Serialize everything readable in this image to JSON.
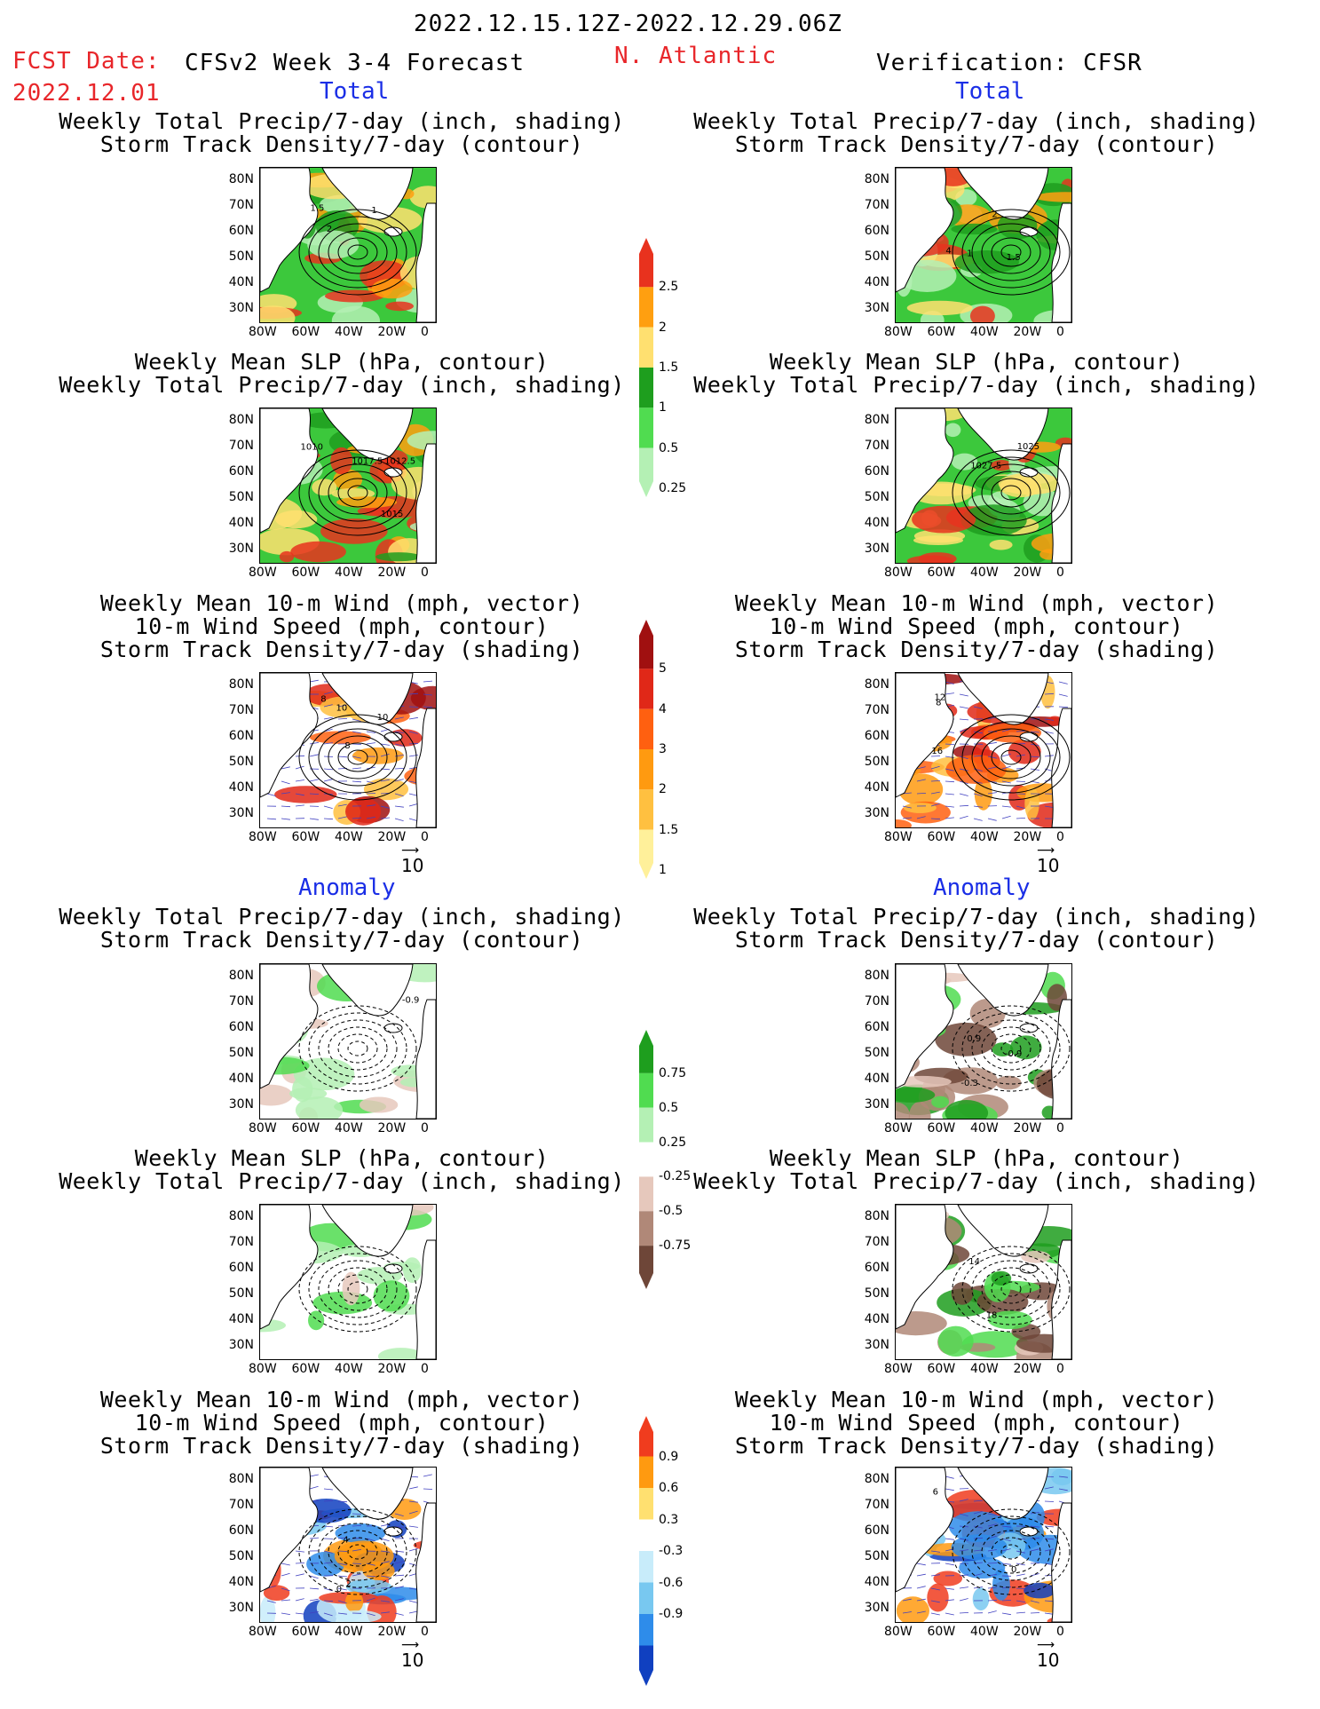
{
  "header": {
    "date_range": "2022.12.15.12Z-2022.12.29.06Z",
    "fcst_label": "FCST Date:",
    "fcst_date": "2022.12.01",
    "model": "CFSv2 Week 3-4 Forecast",
    "region": "N. Atlantic",
    "verification": "Verification: CFSR"
  },
  "sections": {
    "total": "Total",
    "anomaly": "Anomaly"
  },
  "titles": {
    "precip_storm": [
      "Weekly Total Precip/7-day (inch, shading)",
      "Storm Track Density/7-day (contour)"
    ],
    "slp_precip": [
      "Weekly Mean SLP (hPa, contour)",
      "Weekly Total Precip/7-day (inch, shading)"
    ],
    "wind_storm": [
      "Weekly Mean 10-m Wind (mph, vector)",
      "10-m Wind Speed (mph, contour)",
      "Storm Track Density/7-day (shading)"
    ]
  },
  "axes": {
    "lat_labels": [
      "80N",
      "70N",
      "60N",
      "50N",
      "40N",
      "30N"
    ],
    "lon_labels": [
      "80W",
      "60W",
      "40W",
      "20W",
      "0"
    ]
  },
  "vector_ref": "10",
  "colorbars": {
    "precip_total": {
      "labels": [
        "2.5",
        "2",
        "1.5",
        "1",
        "0.5",
        "0.25"
      ],
      "colors": [
        "#e8321e",
        "#ff9f10",
        "#ffe070",
        "#1e9e1e",
        "#50dc50",
        "#b4f0b4"
      ]
    },
    "storm_total": {
      "labels": [
        "5",
        "4",
        "3",
        "2",
        "1.5",
        "1"
      ],
      "colors": [
        "#a01010",
        "#e02818",
        "#ff6010",
        "#ff9a10",
        "#ffc040",
        "#fff09a"
      ]
    },
    "precip_anom": {
      "labels": [
        "0.75",
        "0.5",
        "0.25",
        "-0.25",
        "-0.5",
        "-0.75"
      ],
      "colors": [
        "#1e9e1e",
        "#50dc50",
        "#b4f0b4",
        "#ffffff",
        "#e6c8bc",
        "#b08878",
        "#6e4638"
      ]
    },
    "storm_anom": {
      "labels": [
        "0.9",
        "0.6",
        "0.3",
        "-0.3",
        "-0.6",
        "-0.9"
      ],
      "colors": [
        "#f03c1e",
        "#ff9a10",
        "#ffe070",
        "#ffffff",
        "#c8ecfa",
        "#78c8f0",
        "#2e8cea",
        "#1040c0"
      ]
    }
  },
  "contour_labels": {
    "fc_precip_total": [
      "2",
      "1.5",
      "1"
    ],
    "obs_precip_total": [
      "2",
      "1.5",
      "1",
      "4"
    ],
    "fc_slp_total": [
      "1017.5",
      "1015",
      "1010",
      "1012.5"
    ],
    "obs_slp_total": [
      "1025",
      "1027.5"
    ],
    "fc_wind_total": [
      "10",
      "8",
      "10",
      "8"
    ],
    "obs_wind_total": [
      "8",
      "12",
      "16"
    ],
    "fc_precip_anom": [
      "-0.9"
    ],
    "obs_precip_anom": [
      "-0.3",
      "-0.9",
      "0.9"
    ],
    "obs_slp_anom": [
      "18",
      "14"
    ],
    "fc_wind_anom": [
      "2",
      "4",
      "0"
    ],
    "obs_wind_anom": [
      "0",
      "6"
    ]
  }
}
